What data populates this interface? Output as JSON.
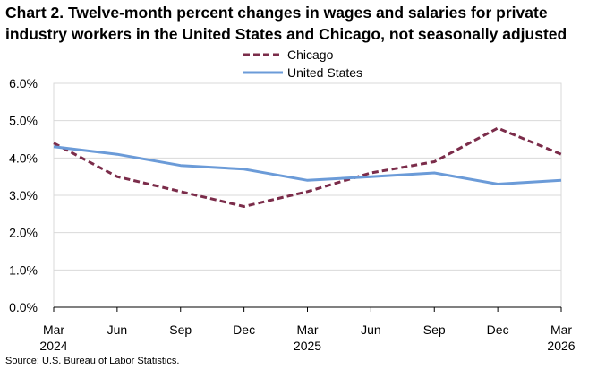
{
  "title_line1": "Chart 2. Twelve-month percent changes in wages and salaries for private",
  "title_line2": "industry workers in the United States and Chicago, not seasonally adjusted",
  "source": "Source: U.S. Bureau of Labor Statistics.",
  "chart_data": {
    "type": "line",
    "categories": [
      "Mar 2024",
      "Jun 2024",
      "Sep 2024",
      "Dec 2024",
      "Mar 2025",
      "Jun 2025",
      "Sep 2025",
      "Dec 2025",
      "Mar 2026"
    ],
    "x_tick_labels": [
      {
        "month": "Mar",
        "year": "2024"
      },
      {
        "month": "Jun",
        "year": ""
      },
      {
        "month": "Sep",
        "year": ""
      },
      {
        "month": "Dec",
        "year": ""
      },
      {
        "month": "Mar",
        "year": "2025"
      },
      {
        "month": "Jun",
        "year": ""
      },
      {
        "month": "Sep",
        "year": ""
      },
      {
        "month": "Dec",
        "year": ""
      },
      {
        "month": "Mar",
        "year": "2026"
      }
    ],
    "y_ticks": [
      "0.0%",
      "1.0%",
      "2.0%",
      "3.0%",
      "4.0%",
      "5.0%",
      "6.0%"
    ],
    "ylim": [
      0,
      6
    ],
    "grid": "horizontal",
    "legend_position": "top",
    "series": [
      {
        "name": "Chicago",
        "color": "#7b2c4a",
        "dash": true,
        "values": [
          4.4,
          3.5,
          3.1,
          2.7,
          3.1,
          3.6,
          3.9,
          4.8,
          4.1
        ]
      },
      {
        "name": "United States",
        "color": "#6b9bd8",
        "dash": false,
        "values": [
          4.3,
          4.1,
          3.8,
          3.7,
          3.4,
          3.5,
          3.6,
          3.3,
          3.4
        ]
      }
    ]
  }
}
